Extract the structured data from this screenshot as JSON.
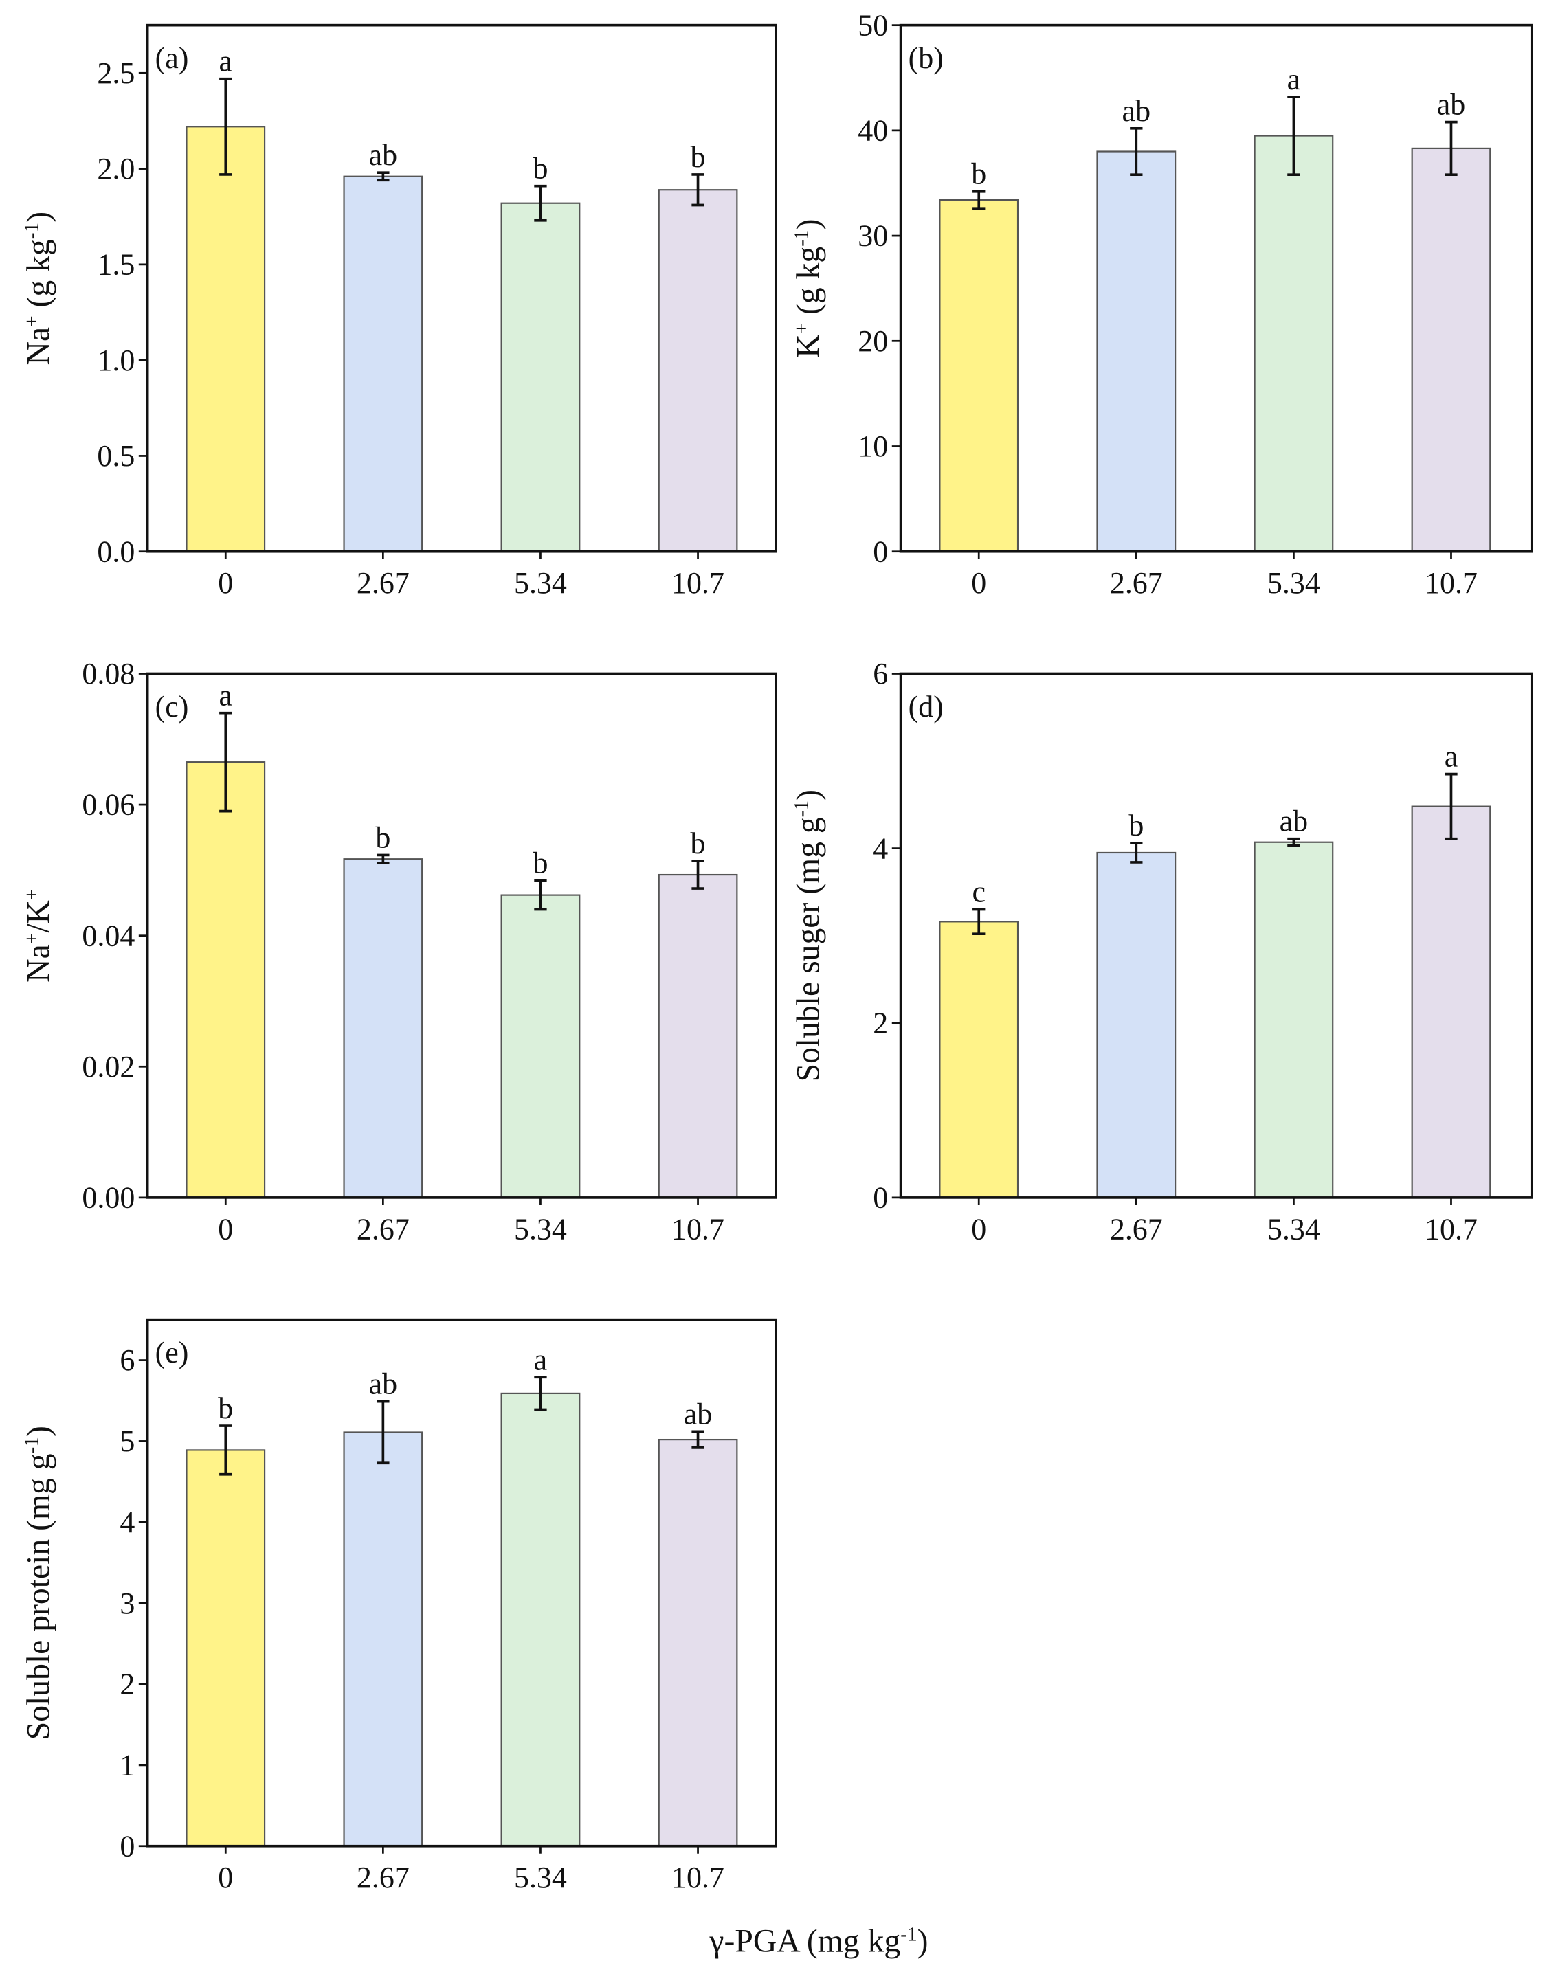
{
  "colors": {
    "bars": [
      "#FFF389",
      "#D4E1F7",
      "#DBF0DB",
      "#E4DEEC"
    ],
    "bar_edge": "#555555",
    "axis": "#111111"
  },
  "xlabel_parts": [
    {
      "t": "γ-PGA (mg kg"
    },
    {
      "t": "-1",
      "sup": true
    },
    {
      "t": ")"
    }
  ],
  "chart_data": [
    {
      "type": "bar",
      "panel": "(a)",
      "categories": [
        "0",
        "2.67",
        "5.34",
        "10.7"
      ],
      "values": [
        2.22,
        1.96,
        1.82,
        1.89
      ],
      "errors": [
        0.25,
        0.02,
        0.09,
        0.08
      ],
      "letters": [
        "a",
        "ab",
        "b",
        "b"
      ],
      "ylim": [
        0,
        2.75
      ],
      "yticks": [
        "0.0",
        "0.5",
        "1.0",
        "1.5",
        "2.0",
        "2.5"
      ],
      "ylabel_parts": [
        {
          "t": "Na"
        },
        {
          "t": "+",
          "sup": true
        },
        {
          "t": " (g kg"
        },
        {
          "t": "-1",
          "sup": true
        },
        {
          "t": ")"
        }
      ]
    },
    {
      "type": "bar",
      "panel": "(b)",
      "categories": [
        "0",
        "2.67",
        "5.34",
        "10.7"
      ],
      "values": [
        33.4,
        38.0,
        39.5,
        38.3
      ],
      "errors": [
        0.8,
        2.2,
        3.7,
        2.5
      ],
      "letters": [
        "b",
        "ab",
        "a",
        "ab"
      ],
      "ylim": [
        0,
        50
      ],
      "yticks": [
        "0",
        "10",
        "20",
        "30",
        "40",
        "50"
      ],
      "ylabel_parts": [
        {
          "t": "K"
        },
        {
          "t": "+",
          "sup": true
        },
        {
          "t": " (g kg"
        },
        {
          "t": "-1",
          "sup": true
        },
        {
          "t": ")"
        }
      ]
    },
    {
      "type": "bar",
      "panel": "(c)",
      "categories": [
        "0",
        "2.67",
        "5.34",
        "10.7"
      ],
      "values": [
        0.0665,
        0.0517,
        0.0462,
        0.0493
      ],
      "errors": [
        0.0075,
        0.0006,
        0.0022,
        0.0021
      ],
      "letters": [
        "a",
        "b",
        "b",
        "b"
      ],
      "ylim": [
        0,
        0.08
      ],
      "yticks": [
        "0.00",
        "0.02",
        "0.04",
        "0.06",
        "0.08"
      ],
      "ylabel_parts": [
        {
          "t": "Na"
        },
        {
          "t": "+",
          "sup": true
        },
        {
          "t": "/K"
        },
        {
          "t": "+",
          "sup": true
        }
      ]
    },
    {
      "type": "bar",
      "panel": "(d)",
      "categories": [
        "0",
        "2.67",
        "5.34",
        "10.7"
      ],
      "values": [
        3.16,
        3.95,
        4.07,
        4.48
      ],
      "errors": [
        0.14,
        0.11,
        0.04,
        0.37
      ],
      "letters": [
        "c",
        "b",
        "ab",
        "a"
      ],
      "ylim": [
        0,
        6
      ],
      "yticks": [
        "0",
        "2",
        "4",
        "6"
      ],
      "ylabel_parts": [
        {
          "t": "Soluble suger (mg g"
        },
        {
          "t": "-1",
          "sup": true
        },
        {
          "t": ")"
        }
      ]
    },
    {
      "type": "bar",
      "panel": "(e)",
      "categories": [
        "0",
        "2.67",
        "5.34",
        "10.7"
      ],
      "values": [
        4.89,
        5.11,
        5.59,
        5.02
      ],
      "errors": [
        0.3,
        0.38,
        0.2,
        0.1
      ],
      "letters": [
        "b",
        "ab",
        "a",
        "ab"
      ],
      "ylim": [
        0,
        6.5
      ],
      "yticks": [
        "0",
        "1",
        "2",
        "3",
        "4",
        "5",
        "6"
      ],
      "ylabel_parts": [
        {
          "t": "Soluble protein (mg g"
        },
        {
          "t": "-1",
          "sup": true
        },
        {
          "t": ")"
        }
      ]
    }
  ]
}
